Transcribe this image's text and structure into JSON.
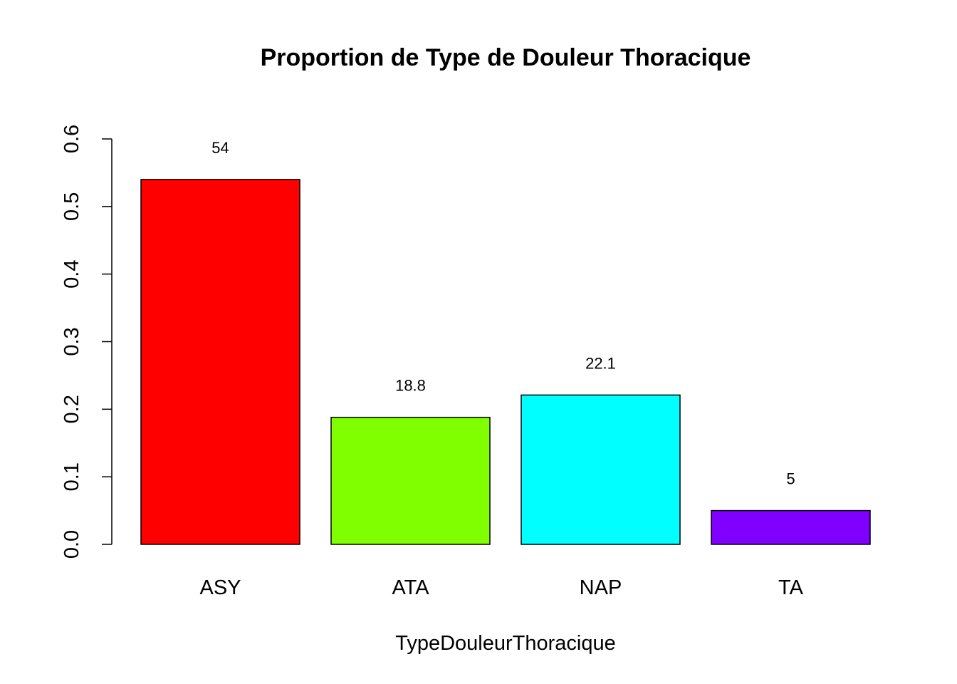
{
  "chart_data": {
    "type": "bar",
    "title": "Proportion de Type de Douleur Thoracique",
    "xlabel": "TypeDouleurThoracique",
    "ylabel": "",
    "categories": [
      "ASY",
      "ATA",
      "NAP",
      "TA"
    ],
    "values": [
      0.54,
      0.188,
      0.221,
      0.05
    ],
    "data_labels": [
      "54",
      "18.8",
      "22.1",
      "5"
    ],
    "colors": [
      "#FF0000",
      "#80FF00",
      "#00FFFF",
      "#8000FF"
    ],
    "ylim": [
      0,
      0.6
    ],
    "yticks": [
      0.0,
      0.1,
      0.2,
      0.3,
      0.4,
      0.5,
      0.6
    ],
    "ytick_labels": [
      "0.0",
      "0.1",
      "0.2",
      "0.3",
      "0.4",
      "0.5",
      "0.6"
    ],
    "grid": false,
    "legend": "none"
  }
}
